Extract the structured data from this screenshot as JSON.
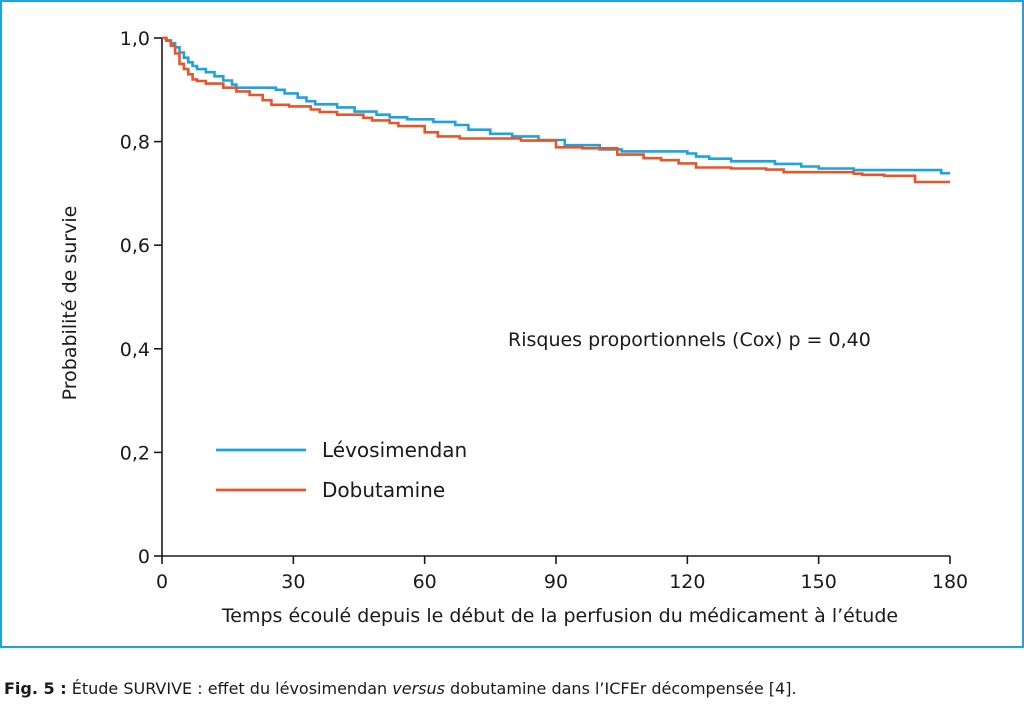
{
  "chart_data": {
    "type": "line",
    "title": "",
    "xlabel": "Temps écoulé depuis le début de la perfusion du médicament à l’étude",
    "ylabel": "Probabilité de survie",
    "xlim": [
      0,
      180
    ],
    "ylim": [
      0,
      1.0
    ],
    "x_ticks": [
      0,
      30,
      60,
      90,
      120,
      150,
      180
    ],
    "x_tick_labels": [
      "0",
      "30",
      "60",
      "90",
      "120",
      "150",
      "180"
    ],
    "y_ticks": [
      0,
      0.2,
      0.4,
      0.6,
      0.8,
      1.0
    ],
    "y_tick_labels": [
      "0",
      "0,2",
      "0,4",
      "0,6",
      "0,8",
      "1,0"
    ],
    "grid": false,
    "legend_position": "bottom-left",
    "annotation": "Risques proportionnels (Cox) p = 0,40",
    "series": [
      {
        "name": "Lévosimendan",
        "color": "#1ea3dc",
        "step": true,
        "points": [
          [
            0,
            1.0
          ],
          [
            1,
            0.995
          ],
          [
            2,
            0.99
          ],
          [
            3,
            0.982
          ],
          [
            4,
            0.972
          ],
          [
            5,
            0.962
          ],
          [
            6,
            0.953
          ],
          [
            7,
            0.946
          ],
          [
            8,
            0.94
          ],
          [
            10,
            0.934
          ],
          [
            12,
            0.926
          ],
          [
            14,
            0.918
          ],
          [
            16,
            0.91
          ],
          [
            17,
            0.904
          ],
          [
            20,
            0.904
          ],
          [
            26,
            0.9
          ],
          [
            28,
            0.893
          ],
          [
            31,
            0.885
          ],
          [
            33,
            0.878
          ],
          [
            35,
            0.872
          ],
          [
            40,
            0.866
          ],
          [
            44,
            0.858
          ],
          [
            49,
            0.852
          ],
          [
            52,
            0.847
          ],
          [
            56,
            0.843
          ],
          [
            62,
            0.838
          ],
          [
            67,
            0.832
          ],
          [
            70,
            0.823
          ],
          [
            75,
            0.815
          ],
          [
            80,
            0.81
          ],
          [
            86,
            0.803
          ],
          [
            92,
            0.793
          ],
          [
            100,
            0.785
          ],
          [
            105,
            0.781
          ],
          [
            120,
            0.777
          ],
          [
            122,
            0.771
          ],
          [
            125,
            0.767
          ],
          [
            130,
            0.762
          ],
          [
            140,
            0.757
          ],
          [
            146,
            0.752
          ],
          [
            150,
            0.748
          ],
          [
            158,
            0.745
          ],
          [
            168,
            0.745
          ],
          [
            172,
            0.745
          ],
          [
            178,
            0.739
          ],
          [
            180,
            0.739
          ]
        ]
      },
      {
        "name": "Dobutamine",
        "color": "#e8552a",
        "step": true,
        "points": [
          [
            0,
            1.0
          ],
          [
            1,
            0.995
          ],
          [
            2,
            0.985
          ],
          [
            3,
            0.97
          ],
          [
            4,
            0.95
          ],
          [
            5,
            0.94
          ],
          [
            6,
            0.93
          ],
          [
            7,
            0.92
          ],
          [
            8,
            0.917
          ],
          [
            10,
            0.912
          ],
          [
            14,
            0.904
          ],
          [
            17,
            0.897
          ],
          [
            20,
            0.89
          ],
          [
            23,
            0.88
          ],
          [
            25,
            0.871
          ],
          [
            29,
            0.868
          ],
          [
            34,
            0.862
          ],
          [
            36,
            0.857
          ],
          [
            40,
            0.852
          ],
          [
            46,
            0.846
          ],
          [
            48,
            0.841
          ],
          [
            52,
            0.836
          ],
          [
            54,
            0.83
          ],
          [
            60,
            0.818
          ],
          [
            63,
            0.81
          ],
          [
            68,
            0.806
          ],
          [
            82,
            0.802
          ],
          [
            90,
            0.789
          ],
          [
            96,
            0.787
          ],
          [
            104,
            0.775
          ],
          [
            110,
            0.768
          ],
          [
            114,
            0.764
          ],
          [
            118,
            0.758
          ],
          [
            122,
            0.75
          ],
          [
            130,
            0.748
          ],
          [
            138,
            0.746
          ],
          [
            142,
            0.741
          ],
          [
            158,
            0.738
          ],
          [
            160,
            0.736
          ],
          [
            165,
            0.734
          ],
          [
            172,
            0.722
          ],
          [
            180,
            0.722
          ]
        ]
      }
    ]
  },
  "caption": {
    "fig_label": "Fig. 5 :",
    "text_1": " Étude SURVIVE : effet du lévosimendan ",
    "text_italic": "versus",
    "text_2": " dobutamine dans l’ICFEr décompensée [4]."
  }
}
